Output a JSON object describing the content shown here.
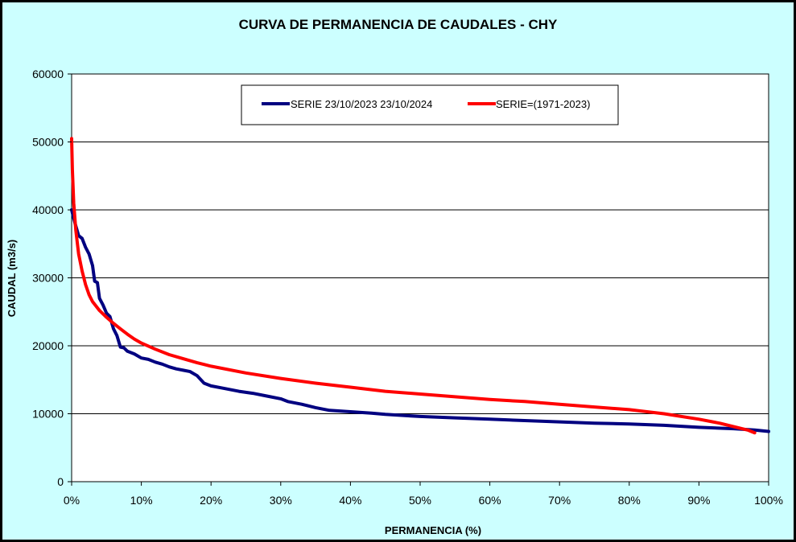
{
  "chart_data": {
    "type": "line",
    "title": "CURVA DE PERMANENCIA DE CAUDALES - CHY",
    "xlabel": "PERMANENCIA (%)",
    "ylabel": "CAUDAL (m3/s)",
    "xlim": [
      0,
      100
    ],
    "ylim": [
      0,
      60000
    ],
    "x_ticks": [
      0,
      10,
      20,
      30,
      40,
      50,
      60,
      70,
      80,
      90,
      100
    ],
    "x_tick_labels": [
      "0%",
      "10%",
      "20%",
      "30%",
      "40%",
      "50%",
      "60%",
      "70%",
      "80%",
      "90%",
      "100%"
    ],
    "y_ticks": [
      0,
      10000,
      20000,
      30000,
      40000,
      50000,
      60000
    ],
    "y_tick_labels": [
      "0",
      "10000",
      "20000",
      "30000",
      "40000",
      "50000",
      "60000"
    ],
    "grid": "horizontal",
    "legend_position": "top-center",
    "series": [
      {
        "name": "SERIE 23/10/2023 23/10/2024",
        "color": "#000080",
        "points": [
          [
            0,
            40000
          ],
          [
            0.5,
            38000
          ],
          [
            1,
            36200
          ],
          [
            1.5,
            35800
          ],
          [
            2,
            34500
          ],
          [
            2.5,
            33500
          ],
          [
            3,
            31800
          ],
          [
            3.3,
            29500
          ],
          [
            3.7,
            29300
          ],
          [
            4,
            27000
          ],
          [
            4.5,
            26000
          ],
          [
            5,
            24800
          ],
          [
            5.5,
            24300
          ],
          [
            6,
            22500
          ],
          [
            6.5,
            21500
          ],
          [
            7,
            19800
          ],
          [
            7.5,
            19700
          ],
          [
            8,
            19200
          ],
          [
            9,
            18800
          ],
          [
            10,
            18200
          ],
          [
            11,
            18000
          ],
          [
            12,
            17600
          ],
          [
            13,
            17300
          ],
          [
            14,
            16900
          ],
          [
            15,
            16600
          ],
          [
            16,
            16400
          ],
          [
            17,
            16200
          ],
          [
            18,
            15600
          ],
          [
            19,
            14500
          ],
          [
            20,
            14100
          ],
          [
            22,
            13700
          ],
          [
            24,
            13300
          ],
          [
            26,
            13000
          ],
          [
            28,
            12600
          ],
          [
            30,
            12200
          ],
          [
            31,
            11800
          ],
          [
            33,
            11400
          ],
          [
            35,
            10900
          ],
          [
            37,
            10500
          ],
          [
            40,
            10300
          ],
          [
            43,
            10100
          ],
          [
            45,
            9900
          ],
          [
            50,
            9600
          ],
          [
            55,
            9400
          ],
          [
            60,
            9200
          ],
          [
            65,
            9000
          ],
          [
            70,
            8800
          ],
          [
            75,
            8600
          ],
          [
            80,
            8500
          ],
          [
            85,
            8300
          ],
          [
            90,
            8000
          ],
          [
            95,
            7800
          ],
          [
            98,
            7600
          ],
          [
            100,
            7400
          ]
        ]
      },
      {
        "name": "SERIE=(1971-2023)",
        "color": "#ff0000",
        "points": [
          [
            0,
            50500
          ],
          [
            0.1,
            46000
          ],
          [
            0.3,
            41000
          ],
          [
            0.6,
            37000
          ],
          [
            1,
            33500
          ],
          [
            1.5,
            31000
          ],
          [
            2,
            29000
          ],
          [
            2.5,
            27500
          ],
          [
            3,
            26500
          ],
          [
            4,
            25200
          ],
          [
            5,
            24200
          ],
          [
            6,
            23300
          ],
          [
            7,
            22500
          ],
          [
            8,
            21700
          ],
          [
            9,
            21000
          ],
          [
            10,
            20400
          ],
          [
            12,
            19500
          ],
          [
            14,
            18700
          ],
          [
            16,
            18100
          ],
          [
            18,
            17500
          ],
          [
            20,
            17000
          ],
          [
            25,
            16000
          ],
          [
            30,
            15200
          ],
          [
            35,
            14500
          ],
          [
            40,
            13900
          ],
          [
            45,
            13300
          ],
          [
            50,
            12900
          ],
          [
            55,
            12500
          ],
          [
            60,
            12100
          ],
          [
            65,
            11800
          ],
          [
            70,
            11400
          ],
          [
            75,
            11000
          ],
          [
            80,
            10600
          ],
          [
            85,
            10000
          ],
          [
            90,
            9200
          ],
          [
            93,
            8600
          ],
          [
            95,
            8100
          ],
          [
            97,
            7600
          ],
          [
            98,
            7200
          ]
        ]
      }
    ]
  }
}
